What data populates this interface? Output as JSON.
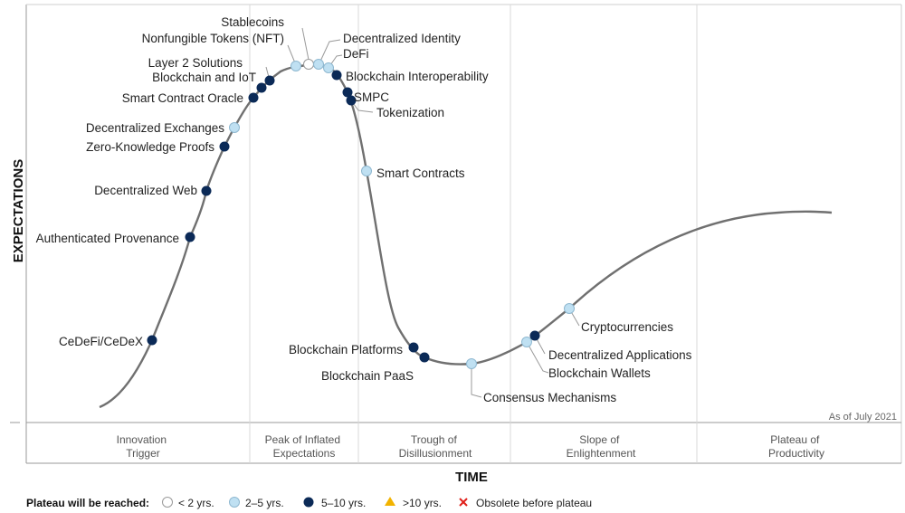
{
  "chart_data": {
    "type": "scatter",
    "title": "",
    "xlabel": "TIME",
    "ylabel": "EXPECTATIONS",
    "as_of": "As of July 2021",
    "phases": [
      [
        "Innovation",
        "Trigger"
      ],
      [
        "Peak of Inflated",
        "Expectations"
      ],
      [
        "Trough of",
        "Disillusionment"
      ],
      [
        "Slope of",
        "Enlightenment"
      ],
      [
        "Plateau of",
        "Productivity"
      ]
    ],
    "legend": {
      "title": "Plateau will be reached:",
      "items": [
        {
          "label": "< 2 yrs.",
          "marker": "circle-white"
        },
        {
          "label": "2–5 yrs.",
          "marker": "circle-light-blue"
        },
        {
          "label": "5–10 yrs.",
          "marker": "circle-dark-navy"
        },
        {
          "label": ">10 yrs.",
          "marker": "triangle-gold"
        },
        {
          "label": "Obsolete before plateau",
          "marker": "x-red"
        }
      ]
    },
    "colors": {
      "lt2": "#ffffff",
      "c2to5": "#bfe0f2",
      "c5to10": "#0b2a57",
      "gt10": "#f2b300",
      "obsolete": "#e0201a",
      "curve": "#707070"
    },
    "technologies": [
      {
        "label": "CeDeFi/CeDeX",
        "plateau": "5-10"
      },
      {
        "label": "Authenticated Provenance",
        "plateau": "5-10"
      },
      {
        "label": "Decentralized Web",
        "plateau": "5-10"
      },
      {
        "label": "Zero-Knowledge Proofs",
        "plateau": "5-10"
      },
      {
        "label": "Decentralized Exchanges",
        "plateau": "2-5"
      },
      {
        "label": "Smart Contract Oracle",
        "plateau": "5-10"
      },
      {
        "label": "Blockchain and IoT",
        "plateau": "5-10"
      },
      {
        "label": "Layer 2 Solutions",
        "plateau": "5-10"
      },
      {
        "label": "Nonfungible Tokens (NFT)",
        "plateau": "2-5"
      },
      {
        "label": "Stablecoins",
        "plateau": "<2"
      },
      {
        "label": "Decentralized Identity",
        "plateau": "2-5"
      },
      {
        "label": "DeFi",
        "plateau": "2-5"
      },
      {
        "label": "Blockchain Interoperability",
        "plateau": "5-10"
      },
      {
        "label": "SMPC",
        "plateau": "5-10"
      },
      {
        "label": "Tokenization",
        "plateau": "5-10"
      },
      {
        "label": "Smart Contracts",
        "plateau": "2-5"
      },
      {
        "label": "Blockchain Platforms",
        "plateau": "5-10"
      },
      {
        "label": "Blockchain PaaS",
        "plateau": "5-10"
      },
      {
        "label": "Consensus Mechanisms",
        "plateau": "2-5"
      },
      {
        "label": "Blockchain Wallets",
        "plateau": "2-5"
      },
      {
        "label": "Decentralized Applications",
        "plateau": "5-10"
      },
      {
        "label": "Cryptocurrencies",
        "plateau": "2-5"
      }
    ]
  }
}
